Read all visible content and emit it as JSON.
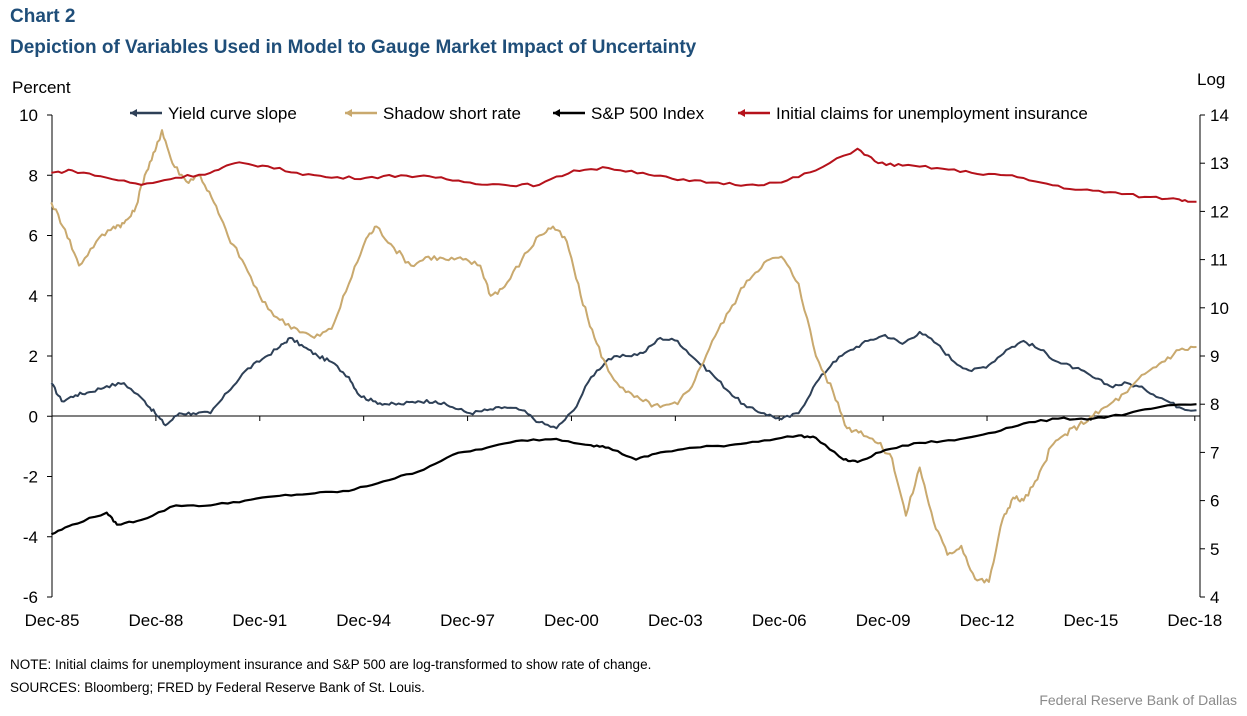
{
  "header": {
    "chart_label": "Chart 2",
    "title": "Depiction of Variables Used in Model to Gauge Market Impact  of Uncertainty"
  },
  "footer": {
    "note": "NOTE:  Initial claims for unemployment  insurance and S&P 500 are log-transformed  to show rate of change.",
    "sources": "SOURCES:  Bloomberg;  FRED by Federal Reserve  Bank of St. Louis.",
    "credit": "Federal Reserve  Bank of Dallas"
  },
  "colors": {
    "yield": "#2e4057",
    "shadow": "#c9a96e",
    "sp500": "#000000",
    "claims": "#b5121b",
    "axis": "#000000"
  },
  "chart_data": {
    "type": "line",
    "x_labels": [
      "Dec-85",
      "Dec-88",
      "Dec-91",
      "Dec-94",
      "Dec-97",
      "Dec-00",
      "Dec-03",
      "Dec-06",
      "Dec-09",
      "Dec-12",
      "Dec-15",
      "Dec-18"
    ],
    "x_range": [
      1985.92,
      2019.1
    ],
    "left_axis": {
      "label": "Percent",
      "min": -6,
      "max": 10,
      "ticks": [
        "10",
        "8",
        "6",
        "4",
        "2",
        "0",
        "-2",
        "-4",
        "-6"
      ]
    },
    "right_axis": {
      "label": "Log",
      "min": 4,
      "max": 14,
      "ticks": [
        "14",
        "13",
        "12",
        "11",
        "10",
        "9",
        "8",
        "7",
        "6",
        "5",
        "4"
      ]
    },
    "series": [
      {
        "name": "Yield curve slope",
        "axis": "left",
        "color_key": "yield",
        "points": [
          [
            1985.9,
            1.1
          ],
          [
            1986.2,
            0.5
          ],
          [
            1986.6,
            0.7
          ],
          [
            1987.0,
            0.8
          ],
          [
            1987.5,
            1.0
          ],
          [
            1988.0,
            1.1
          ],
          [
            1988.6,
            0.5
          ],
          [
            1988.9,
            0.1
          ],
          [
            1989.2,
            -0.3
          ],
          [
            1989.6,
            0.1
          ],
          [
            1990.0,
            0.1
          ],
          [
            1990.5,
            0.1
          ],
          [
            1991.0,
            0.8
          ],
          [
            1991.5,
            1.5
          ],
          [
            1992.0,
            1.9
          ],
          [
            1992.5,
            2.3
          ],
          [
            1992.8,
            2.6
          ],
          [
            1993.2,
            2.3
          ],
          [
            1993.6,
            2.0
          ],
          [
            1994.0,
            1.8
          ],
          [
            1994.5,
            1.3
          ],
          [
            1994.8,
            0.7
          ],
          [
            1995.2,
            0.5
          ],
          [
            1995.6,
            0.4
          ],
          [
            1996.0,
            0.4
          ],
          [
            1996.5,
            0.5
          ],
          [
            1997.0,
            0.5
          ],
          [
            1997.5,
            0.3
          ],
          [
            1998.0,
            0.1
          ],
          [
            1998.5,
            0.2
          ],
          [
            1999.0,
            0.3
          ],
          [
            1999.5,
            0.2
          ],
          [
            2000.0,
            -0.2
          ],
          [
            2000.5,
            -0.4
          ],
          [
            2001.0,
            0.2
          ],
          [
            2001.5,
            1.3
          ],
          [
            2002.0,
            1.9
          ],
          [
            2002.5,
            2.0
          ],
          [
            2003.0,
            2.1
          ],
          [
            2003.5,
            2.6
          ],
          [
            2004.0,
            2.5
          ],
          [
            2004.5,
            1.9
          ],
          [
            2005.0,
            1.4
          ],
          [
            2005.5,
            0.8
          ],
          [
            2006.0,
            0.3
          ],
          [
            2006.5,
            0.1
          ],
          [
            2007.0,
            -0.1
          ],
          [
            2007.5,
            0.1
          ],
          [
            2008.0,
            1.1
          ],
          [
            2008.5,
            1.8
          ],
          [
            2009.0,
            2.2
          ],
          [
            2009.5,
            2.5
          ],
          [
            2010.0,
            2.7
          ],
          [
            2010.5,
            2.4
          ],
          [
            2011.0,
            2.8
          ],
          [
            2011.5,
            2.4
          ],
          [
            2012.0,
            1.8
          ],
          [
            2012.5,
            1.5
          ],
          [
            2013.0,
            1.7
          ],
          [
            2013.5,
            2.2
          ],
          [
            2014.0,
            2.5
          ],
          [
            2014.5,
            2.2
          ],
          [
            2015.0,
            1.8
          ],
          [
            2015.5,
            1.6
          ],
          [
            2016.0,
            1.3
          ],
          [
            2016.5,
            1.0
          ],
          [
            2017.0,
            1.1
          ],
          [
            2017.5,
            0.9
          ],
          [
            2018.0,
            0.6
          ],
          [
            2018.5,
            0.3
          ],
          [
            2019.0,
            0.2
          ]
        ]
      },
      {
        "name": "Shadow short rate",
        "axis": "left",
        "color_key": "shadow",
        "points": [
          [
            1985.9,
            7.1
          ],
          [
            1986.3,
            6.2
          ],
          [
            1986.7,
            5.0
          ],
          [
            1987.2,
            5.8
          ],
          [
            1987.7,
            6.3
          ],
          [
            1988.0,
            6.4
          ],
          [
            1988.3,
            6.8
          ],
          [
            1988.6,
            8.0
          ],
          [
            1988.9,
            8.8
          ],
          [
            1989.1,
            9.5
          ],
          [
            1989.4,
            8.4
          ],
          [
            1989.8,
            7.8
          ],
          [
            1990.2,
            8.0
          ],
          [
            1990.6,
            7.1
          ],
          [
            1991.0,
            6.0
          ],
          [
            1991.5,
            5.0
          ],
          [
            1992.0,
            3.8
          ],
          [
            1992.5,
            3.2
          ],
          [
            1993.0,
            2.9
          ],
          [
            1993.5,
            2.6
          ],
          [
            1994.0,
            2.9
          ],
          [
            1994.5,
            4.4
          ],
          [
            1995.0,
            5.9
          ],
          [
            1995.3,
            6.3
          ],
          [
            1995.8,
            5.6
          ],
          [
            1996.3,
            5.0
          ],
          [
            1996.8,
            5.3
          ],
          [
            1997.3,
            5.2
          ],
          [
            1997.8,
            5.2
          ],
          [
            1998.3,
            5.0
          ],
          [
            1998.6,
            4.0
          ],
          [
            1999.0,
            4.3
          ],
          [
            1999.5,
            5.2
          ],
          [
            2000.0,
            6.0
          ],
          [
            2000.4,
            6.3
          ],
          [
            2000.8,
            5.8
          ],
          [
            2001.2,
            4.0
          ],
          [
            2001.6,
            2.6
          ],
          [
            2002.0,
            1.5
          ],
          [
            2002.5,
            0.8
          ],
          [
            2003.0,
            0.5
          ],
          [
            2003.5,
            0.3
          ],
          [
            2004.0,
            0.4
          ],
          [
            2004.5,
            1.2
          ],
          [
            2005.0,
            2.5
          ],
          [
            2005.5,
            3.5
          ],
          [
            2006.0,
            4.5
          ],
          [
            2006.5,
            5.1
          ],
          [
            2007.0,
            5.3
          ],
          [
            2007.5,
            4.4
          ],
          [
            2008.0,
            2.0
          ],
          [
            2008.5,
            0.8
          ],
          [
            2008.9,
            -0.4
          ],
          [
            2009.3,
            -0.5
          ],
          [
            2009.8,
            -0.9
          ],
          [
            2010.2,
            -1.4
          ],
          [
            2010.6,
            -3.3
          ],
          [
            2011.0,
            -1.7
          ],
          [
            2011.4,
            -3.5
          ],
          [
            2011.8,
            -4.6
          ],
          [
            2012.2,
            -4.3
          ],
          [
            2012.6,
            -5.4
          ],
          [
            2013.0,
            -5.5
          ],
          [
            2013.4,
            -3.4
          ],
          [
            2013.7,
            -2.7
          ],
          [
            2014.0,
            -2.8
          ],
          [
            2014.4,
            -2.1
          ],
          [
            2014.8,
            -1.0
          ],
          [
            2015.2,
            -0.6
          ],
          [
            2015.6,
            -0.3
          ],
          [
            2016.0,
            0.0
          ],
          [
            2016.5,
            0.4
          ],
          [
            2017.0,
            0.8
          ],
          [
            2017.5,
            1.4
          ],
          [
            2018.0,
            1.8
          ],
          [
            2018.5,
            2.2
          ],
          [
            2019.0,
            2.3
          ]
        ]
      },
      {
        "name": "S&P 500 Index",
        "axis": "right",
        "color_key": "sp500",
        "points": [
          [
            1985.9,
            5.3
          ],
          [
            1986.5,
            5.5
          ],
          [
            1987.5,
            5.75
          ],
          [
            1987.8,
            5.5
          ],
          [
            1988.5,
            5.6
          ],
          [
            1989.5,
            5.9
          ],
          [
            1990.5,
            5.9
          ],
          [
            1991.5,
            6.0
          ],
          [
            1992.5,
            6.1
          ],
          [
            1993.5,
            6.15
          ],
          [
            1994.5,
            6.2
          ],
          [
            1995.5,
            6.4
          ],
          [
            1996.5,
            6.6
          ],
          [
            1997.5,
            6.95
          ],
          [
            1998.5,
            7.1
          ],
          [
            1999.5,
            7.25
          ],
          [
            2000.5,
            7.28
          ],
          [
            2001.5,
            7.15
          ],
          [
            2002.0,
            7.1
          ],
          [
            2002.8,
            6.85
          ],
          [
            2003.5,
            7.0
          ],
          [
            2004.5,
            7.1
          ],
          [
            2005.5,
            7.15
          ],
          [
            2006.5,
            7.25
          ],
          [
            2007.5,
            7.35
          ],
          [
            2008.0,
            7.3
          ],
          [
            2008.8,
            6.85
          ],
          [
            2009.2,
            6.8
          ],
          [
            2010.0,
            7.05
          ],
          [
            2011.0,
            7.2
          ],
          [
            2012.0,
            7.25
          ],
          [
            2013.0,
            7.4
          ],
          [
            2014.0,
            7.6
          ],
          [
            2015.0,
            7.7
          ],
          [
            2016.0,
            7.7
          ],
          [
            2017.0,
            7.8
          ],
          [
            2018.0,
            7.95
          ],
          [
            2019.0,
            8.0
          ]
        ]
      },
      {
        "name": "Initial claims for unemployment insurance",
        "axis": "right",
        "color_key": "claims",
        "points": [
          [
            1985.9,
            12.8
          ],
          [
            1986.5,
            12.85
          ],
          [
            1987.5,
            12.7
          ],
          [
            1988.5,
            12.55
          ],
          [
            1989.5,
            12.7
          ],
          [
            1990.5,
            12.8
          ],
          [
            1991.2,
            13.0
          ],
          [
            1992.0,
            12.95
          ],
          [
            1993.0,
            12.8
          ],
          [
            1994.0,
            12.7
          ],
          [
            1995.0,
            12.7
          ],
          [
            1996.0,
            12.75
          ],
          [
            1997.0,
            12.7
          ],
          [
            1998.0,
            12.6
          ],
          [
            1999.0,
            12.55
          ],
          [
            2000.0,
            12.55
          ],
          [
            2001.0,
            12.85
          ],
          [
            2002.0,
            12.9
          ],
          [
            2003.0,
            12.8
          ],
          [
            2004.0,
            12.65
          ],
          [
            2005.0,
            12.6
          ],
          [
            2006.0,
            12.55
          ],
          [
            2007.0,
            12.6
          ],
          [
            2008.0,
            12.85
          ],
          [
            2009.2,
            13.3
          ],
          [
            2009.8,
            13.0
          ],
          [
            2010.5,
            12.95
          ],
          [
            2011.5,
            12.9
          ],
          [
            2012.5,
            12.8
          ],
          [
            2013.5,
            12.75
          ],
          [
            2014.5,
            12.6
          ],
          [
            2015.5,
            12.45
          ],
          [
            2016.5,
            12.4
          ],
          [
            2017.5,
            12.3
          ],
          [
            2018.5,
            12.25
          ],
          [
            2019.0,
            12.2
          ]
        ]
      }
    ]
  }
}
